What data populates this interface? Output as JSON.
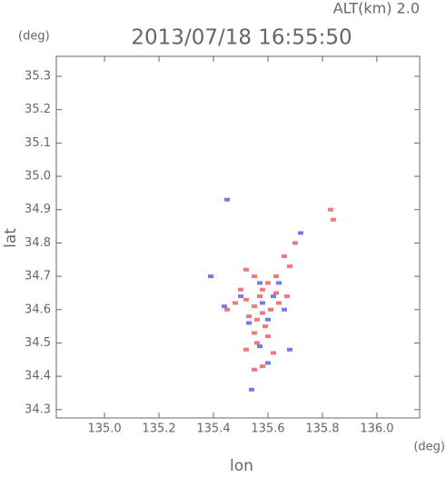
{
  "chart_data": {
    "type": "scatter",
    "title": "2013/07/18 16:55:50",
    "subtitle": "ALT(km) 2.0",
    "x_label": "lon",
    "y_label": "lat",
    "x_unit": "(deg)",
    "y_unit": "(deg)",
    "xlim": [
      134.823,
      136.157
    ],
    "ylim": [
      34.275,
      35.36
    ],
    "xticks": [
      {
        "value": 135.0,
        "label": "135.0"
      },
      {
        "value": 135.2,
        "label": "135.2"
      },
      {
        "value": 135.4,
        "label": "135.4"
      },
      {
        "value": 135.6,
        "label": "135.6"
      },
      {
        "value": 135.8,
        "label": "135.8"
      },
      {
        "value": 136.0,
        "label": "136.0"
      }
    ],
    "yticks": [
      34.3,
      34.4,
      34.5,
      34.6,
      34.7,
      34.8,
      34.9,
      {
        "value": 35.0,
        "label": "35.0"
      },
      35.1,
      35.2,
      35.3
    ],
    "series": [
      {
        "color": "#f07878",
        "x": [
          135.83,
          135.84,
          135.7,
          135.66,
          135.68,
          135.52,
          135.55,
          135.58,
          135.6,
          135.63,
          135.5,
          135.52,
          135.55,
          135.58,
          135.61,
          135.56,
          135.53,
          135.64,
          135.67,
          135.48,
          135.59,
          135.55,
          135.6,
          135.52,
          135.56,
          135.62,
          135.58,
          135.55,
          135.45,
          135.63,
          135.57
        ],
        "values": [
          34.9,
          34.87,
          34.8,
          34.76,
          34.73,
          34.72,
          34.7,
          34.66,
          34.68,
          34.65,
          34.66,
          34.63,
          34.61,
          34.59,
          34.6,
          34.57,
          34.58,
          34.62,
          34.64,
          34.62,
          34.55,
          34.53,
          34.52,
          34.48,
          34.5,
          34.47,
          34.43,
          34.42,
          34.6,
          34.7,
          34.64
        ]
      },
      {
        "color": "#7878f0",
        "x": [
          135.72,
          135.45,
          135.57,
          135.62,
          135.5,
          135.53,
          135.6,
          135.66,
          135.44,
          135.57,
          135.68,
          135.6,
          135.54,
          135.39,
          135.64,
          135.58
        ],
        "values": [
          34.83,
          34.93,
          34.68,
          34.64,
          34.64,
          34.56,
          34.57,
          34.6,
          34.61,
          34.49,
          34.48,
          34.44,
          34.36,
          34.7,
          34.68,
          34.62
        ]
      }
    ]
  }
}
